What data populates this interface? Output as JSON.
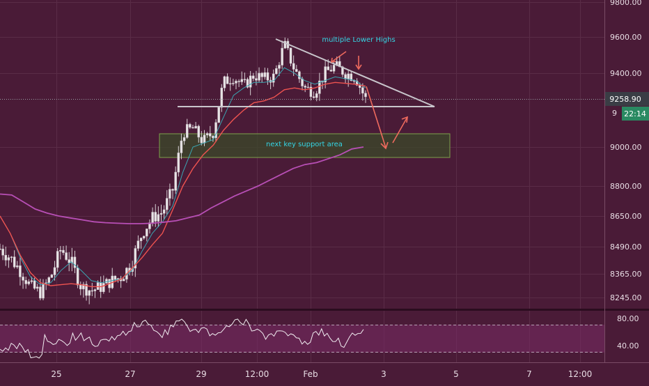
{
  "chart_data": {
    "type": "line",
    "price_axis": {
      "ticks": [
        9800,
        9600,
        9400,
        9000,
        8800,
        8650,
        8490,
        8365,
        8245
      ],
      "tick_labels": [
        "9800.00",
        "9600.00",
        "9400.00",
        "9000.00",
        "8800.00",
        "8650.00",
        "8490.00",
        "8365.00",
        "8245.00"
      ],
      "current_price": "9258.90",
      "countdown": "22:14",
      "hidden_label_fragment": "9"
    },
    "time_axis": {
      "labels": [
        "25",
        "27",
        "29",
        "12:00",
        "Feb",
        "3",
        "5",
        "7",
        "12:00"
      ]
    },
    "annotations": {
      "lower_highs": "multiple Lower Highs",
      "support": "next key support area"
    },
    "rsi": {
      "upper": "80.00",
      "lower": "40.00"
    },
    "series": [
      {
        "color": "#ffffff",
        "values": [
          8480,
          8440,
          8380,
          8300,
          8270,
          8350,
          8480,
          8420,
          8300,
          8280,
          8300,
          8330,
          8350,
          8420,
          8560,
          8640,
          8670,
          8780,
          9080,
          9100,
          9030,
          9080,
          9350,
          9380,
          9330,
          9390,
          9370,
          9380,
          9560,
          9420,
          9320,
          9300,
          9400,
          9440,
          9400,
          9380,
          9260
        ]
      },
      {
        "color": "#3aa7b4",
        "values": [
          8650,
          8560,
          8440,
          8350,
          8310,
          8320,
          8380,
          8420,
          8380,
          8330,
          8320,
          8330,
          8340,
          8380,
          8470,
          8560,
          8620,
          8700,
          8870,
          9000,
          9020,
          9040,
          9160,
          9280,
          9320,
          9350,
          9350,
          9360,
          9430,
          9400,
          9360,
          9340,
          9360,
          9380,
          9370,
          9360,
          9320
        ]
      },
      {
        "color": "#ef5350",
        "values": [
          8650,
          8560,
          8450,
          8370,
          8320,
          8305,
          8310,
          8315,
          8310,
          8300,
          8300,
          8320,
          8340,
          8390,
          8440,
          8500,
          8560,
          8680,
          8800,
          8890,
          8960,
          9010,
          9090,
          9150,
          9200,
          9240,
          9250,
          9270,
          9310,
          9320,
          9310,
          9320,
          9340,
          9350,
          9345,
          9340,
          9330
        ]
      },
      {
        "color": "#b84fb6",
        "values": [
          8760,
          8755,
          8720,
          8685,
          8665,
          8650,
          8640,
          8630,
          8620,
          8615,
          8612,
          8610,
          8610,
          8612,
          8618,
          8625,
          8640,
          8655,
          8690,
          8720,
          8750,
          8775,
          8800,
          8830,
          8860,
          8890,
          8910,
          8920,
          8940,
          8960,
          8990,
          9000
        ]
      }
    ]
  }
}
